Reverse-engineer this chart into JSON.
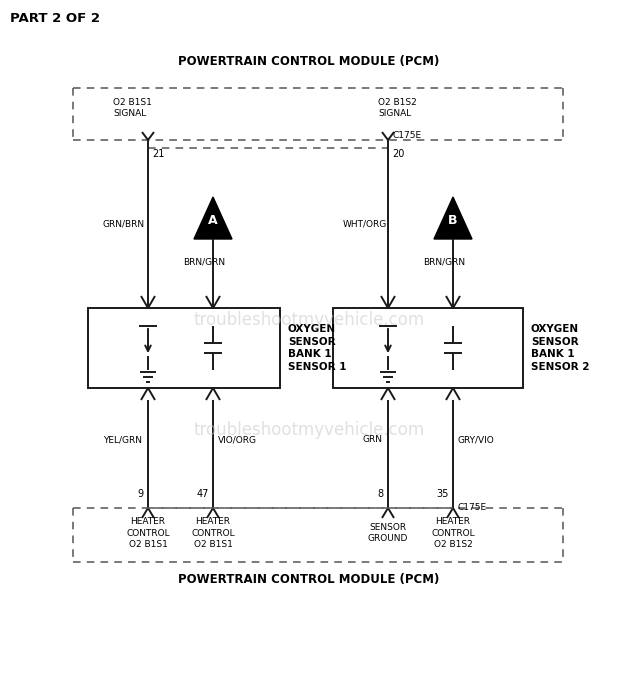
{
  "title_part": "PART 2 OF 2",
  "pcm_title": "POWERTRAIN CONTROL MODULE (PCM)",
  "pcm_title_bottom": "POWERTRAIN CONTROL MODULE (PCM)",
  "bg_color": "#ffffff",
  "line_color": "#1a1a1a",
  "dashed_color": "#555555",
  "s1_signal_label": "O2 B1S1\nSIGNAL",
  "s2_signal_label": "O2 B1S2\nSIGNAL",
  "c175e": "C175E",
  "pin21": "21",
  "pin20": "20",
  "s1_wire_top": "GRN/BRN",
  "s2_wire_top": "WHT/ORG",
  "s1_brn_grn": "BRN/GRN",
  "s2_brn_grn": "BRN/GRN",
  "s1_label": "OXYGEN\nSENSOR\nBANK 1\nSENSOR 1",
  "s2_label": "OXYGEN\nSENSOR\nBANK 1\nSENSOR 2",
  "s1_wire_bot_l": "YEL/GRN",
  "s1_wire_bot_r": "VIO/ORG",
  "s2_wire_bot_l": "GRN",
  "s2_wire_bot_r": "GRY/VIO",
  "pin9": "9",
  "pin47": "47",
  "pin8": "8",
  "pin35": "35",
  "lbl_hc1": "HEATER\nCONTROL\nO2 B1S1",
  "lbl_hc2": "HEATER\nCONTROL\nO2 B1S1",
  "lbl_sg": "SENSOR\nGROUND",
  "lbl_hc4": "HEATER\nCONTROL\nO2 B1S2",
  "watermark": "troubleshootmyvehicle.com",
  "tri_a": "A",
  "tri_b": "B"
}
